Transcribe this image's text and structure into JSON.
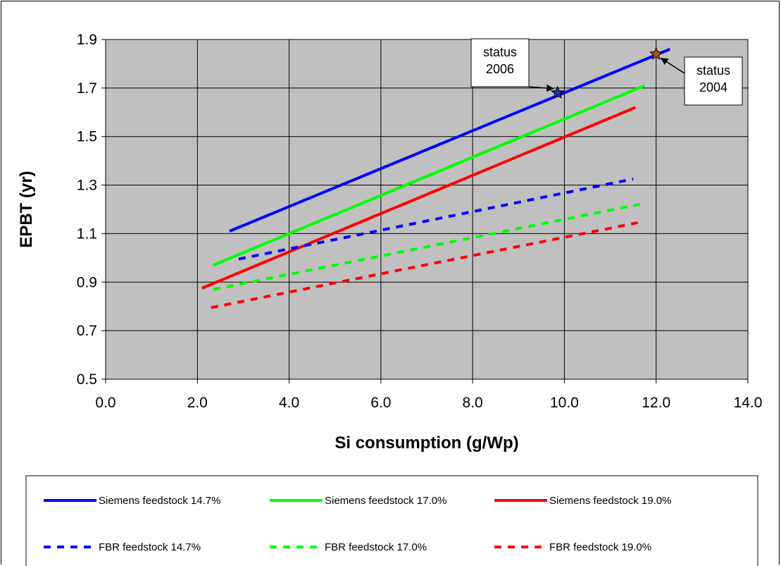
{
  "chart_data": {
    "type": "line",
    "title": "",
    "xlabel": "Si consumption (g/Wp)",
    "ylabel": "EPBT (yr)",
    "xlim": [
      0,
      14
    ],
    "ylim": [
      0.5,
      1.9
    ],
    "xticks": [
      "0.0",
      "2.0",
      "4.0",
      "6.0",
      "8.0",
      "10.0",
      "12.0",
      "14.0"
    ],
    "yticks": [
      "0.5",
      "0.7",
      "0.9",
      "1.1",
      "1.3",
      "1.5",
      "1.7",
      "1.9"
    ],
    "grid": true,
    "plot_background": "#c0c0c0",
    "legend_position": "bottom",
    "series": [
      {
        "name": "Siemens feedstock 14.7%",
        "color": "#0000ff",
        "dashed": false,
        "x": [
          2.7,
          12.3
        ],
        "y": [
          1.11,
          1.86
        ]
      },
      {
        "name": "Siemens feedstock 17.0%",
        "color": "#00ff00",
        "dashed": false,
        "x": [
          2.35,
          11.75
        ],
        "y": [
          0.97,
          1.71
        ]
      },
      {
        "name": "Siemens feedstock 19.0%",
        "color": "#ff0000",
        "dashed": false,
        "x": [
          2.1,
          11.55
        ],
        "y": [
          0.875,
          1.62
        ]
      },
      {
        "name": "FBR feedstock 14.7%",
        "color": "#0000ff",
        "dashed": true,
        "x": [
          2.9,
          11.5
        ],
        "y": [
          0.995,
          1.325
        ]
      },
      {
        "name": "FBR feedstock 17.0%",
        "color": "#00ff00",
        "dashed": true,
        "x": [
          2.35,
          11.75
        ],
        "y": [
          0.87,
          1.225
        ]
      },
      {
        "name": "FBR feedstock 19.0%",
        "color": "#ff0000",
        "dashed": true,
        "x": [
          2.3,
          11.6
        ],
        "y": [
          0.795,
          1.145
        ]
      }
    ],
    "markers": [
      {
        "x": 9.85,
        "y": 1.68,
        "color": "#1f2f9f"
      },
      {
        "x": 12.0,
        "y": 1.84,
        "color": "#a0522d"
      }
    ],
    "annotations": [
      {
        "lines": [
          "status",
          "2006"
        ],
        "target": 0
      },
      {
        "lines": [
          "status",
          "2004"
        ],
        "target": 1
      }
    ]
  }
}
